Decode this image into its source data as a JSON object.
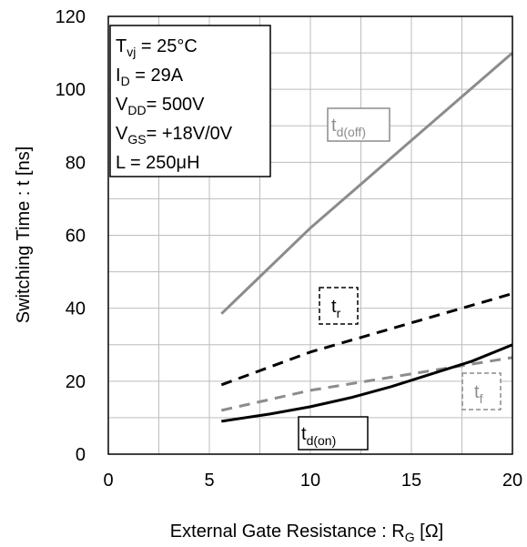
{
  "chart_data": {
    "type": "line",
    "xlabel": "External Gate Resistance : R",
    "xlabel_sub": "G",
    "xlabel_unit": " [Ω]",
    "ylabel": "Switching Time : t [ns]",
    "xlim": [
      0,
      20
    ],
    "ylim": [
      0,
      120
    ],
    "x_ticks": [
      0,
      5,
      10,
      15,
      20
    ],
    "y_ticks": [
      0,
      20,
      40,
      60,
      80,
      100,
      120
    ],
    "grid": true,
    "conditions": [
      {
        "main": "T",
        "sub": "vj",
        "rest": " =   25°C"
      },
      {
        "main": "I",
        "sub": "D",
        "rest": " =   29A"
      },
      {
        "main": "V",
        "sub": "DD",
        "rest": "= 500V"
      },
      {
        "main": "V",
        "sub": "GS",
        "rest": "= +18V/0V"
      },
      {
        "main": "L =",
        "sub": "",
        "rest": "    250μH"
      }
    ],
    "series": [
      {
        "label_main": "t",
        "label_sub": "d(off)",
        "color": "#8c8c8c",
        "dash": "solid",
        "x": [
          5.6,
          10,
          15,
          20
        ],
        "y": [
          38.5,
          62,
          86,
          110
        ]
      },
      {
        "label_main": "t",
        "label_sub": "r",
        "color": "#000000",
        "dash": "dashed",
        "x": [
          5.6,
          10,
          15,
          20
        ],
        "y": [
          19,
          28,
          36,
          44
        ]
      },
      {
        "label_main": "t",
        "label_sub": "f",
        "color": "#8c8c8c",
        "dash": "dashed",
        "x": [
          5.6,
          10,
          15,
          20
        ],
        "y": [
          12,
          17.5,
          22,
          26.5
        ]
      },
      {
        "label_main": "t",
        "label_sub": "d(on)",
        "color": "#000000",
        "dash": "solid",
        "x": [
          5.6,
          8,
          10,
          12,
          14,
          16,
          18,
          20
        ],
        "y": [
          9,
          11,
          13,
          15.5,
          18.5,
          22,
          25.5,
          30
        ]
      }
    ]
  }
}
